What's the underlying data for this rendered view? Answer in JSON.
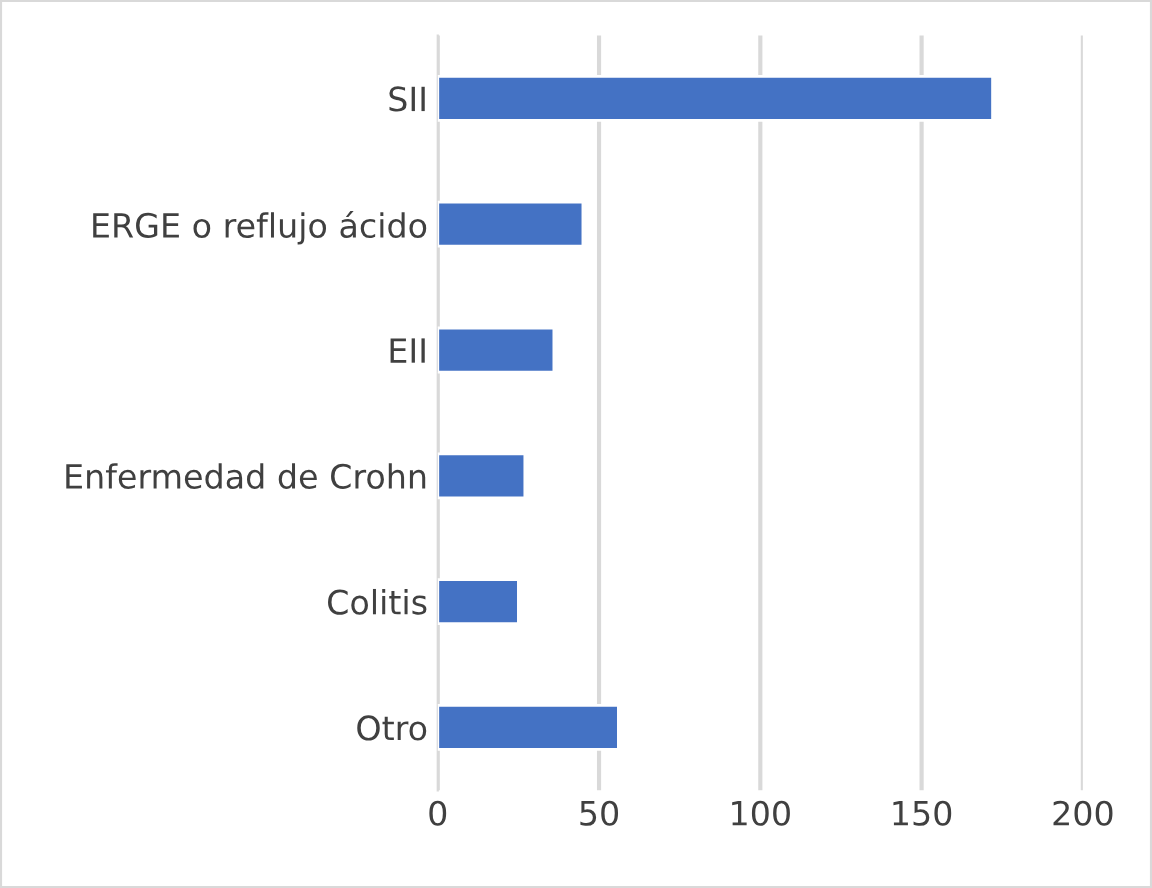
{
  "chart_data": {
    "type": "bar",
    "orientation": "horizontal",
    "categories": [
      "SII",
      "ERGE o reflujo ácido",
      "EII",
      "Enfermedad de Crohn",
      "Colitis",
      "Otro"
    ],
    "values": [
      172,
      45,
      36,
      27,
      25,
      56
    ],
    "color": "#4472c4",
    "xlim": [
      0,
      200
    ],
    "xticks": [
      0,
      50,
      100,
      150,
      200
    ],
    "grid": "x"
  }
}
